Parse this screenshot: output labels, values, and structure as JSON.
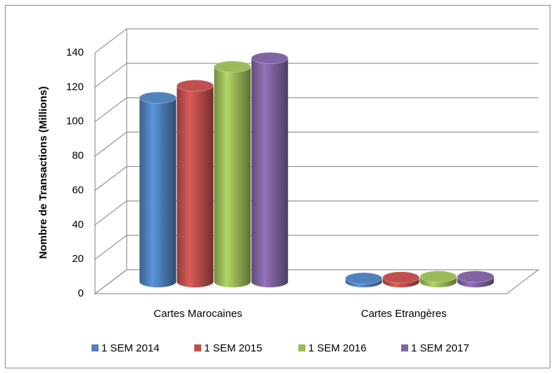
{
  "chart_data": {
    "type": "bar3d",
    "y_axis_label": "Nombre de Transactions (Millions)",
    "categories": [
      "Cartes Marocaines",
      "Cartes Etrangères"
    ],
    "series": [
      {
        "name": "1 SEM 2014",
        "color": "#4f81bd",
        "values": [
          107,
          2
        ]
      },
      {
        "name": "1 SEM 2015",
        "color": "#c0504d",
        "values": [
          114,
          2.5
        ]
      },
      {
        "name": "1 SEM 2016",
        "color": "#9bbb59",
        "values": [
          125,
          3
        ]
      },
      {
        "name": "1 SEM 2017",
        "color": "#8064a2",
        "values": [
          130,
          3
        ]
      }
    ],
    "ylim": [
      0,
      140
    ],
    "yticks": [
      0,
      20,
      40,
      60,
      80,
      100,
      120,
      140
    ],
    "grid": true,
    "legend": "bottom"
  }
}
